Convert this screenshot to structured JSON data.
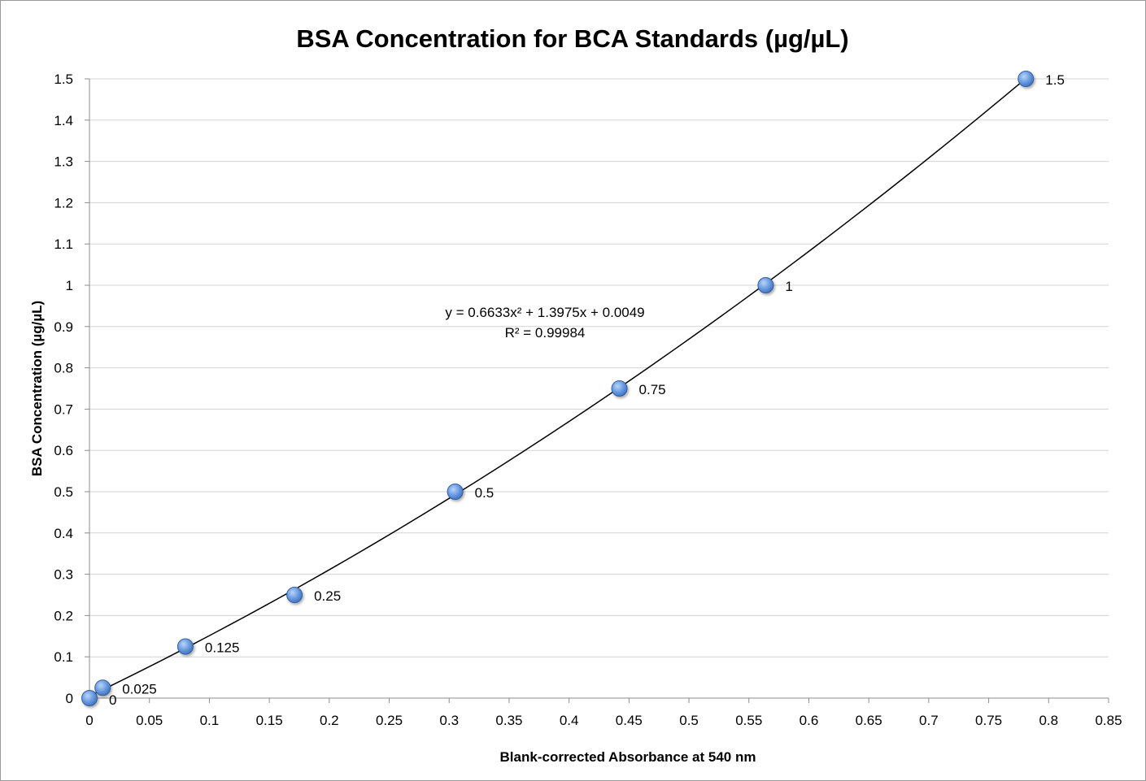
{
  "chart_data": {
    "type": "scatter",
    "title": "BSA Concentration for BCA Standards (µg/µL)",
    "xlabel": "Blank-corrected Absorbance at 540 nm",
    "ylabel": "BSA Concentration (µg/µL)",
    "xlim": [
      0,
      0.85
    ],
    "ylim": [
      0,
      1.5
    ],
    "x_ticks": [
      0,
      0.05,
      0.1,
      0.15,
      0.2,
      0.25,
      0.3,
      0.35,
      0.4,
      0.45,
      0.5,
      0.55,
      0.6,
      0.65,
      0.7,
      0.75,
      0.8,
      0.85
    ],
    "x_tick_labels": [
      "0",
      "0.05",
      "0.1",
      "0.15",
      "0.2",
      "0.25",
      "0.3",
      "0.35",
      "0.4",
      "0.45",
      "0.5",
      "0.55",
      "0.6",
      "0.65",
      "0.7",
      "0.75",
      "0.8",
      "0.85"
    ],
    "y_ticks": [
      0,
      0.1,
      0.2,
      0.3,
      0.4,
      0.5,
      0.6,
      0.7,
      0.8,
      0.9,
      1,
      1.1,
      1.2,
      1.3,
      1.4,
      1.5
    ],
    "y_tick_labels": [
      "0",
      "0.1",
      "0.2",
      "0.3",
      "0.4",
      "0.5",
      "0.6",
      "0.7",
      "0.8",
      "0.9",
      "1",
      "1.1",
      "1.2",
      "1.3",
      "1.4",
      "1.5"
    ],
    "grid": {
      "horizontal": true,
      "vertical": false
    },
    "legend": "none",
    "series": [
      {
        "points": [
          {
            "x": 0.0,
            "y": 0,
            "label": "0"
          },
          {
            "x": 0.011,
            "y": 0.025,
            "label": "0.025"
          },
          {
            "x": 0.08,
            "y": 0.125,
            "label": "0.125"
          },
          {
            "x": 0.171,
            "y": 0.25,
            "label": "0.25"
          },
          {
            "x": 0.305,
            "y": 0.5,
            "label": "0.5"
          },
          {
            "x": 0.442,
            "y": 0.75,
            "label": "0.75"
          },
          {
            "x": 0.564,
            "y": 1,
            "label": "1"
          },
          {
            "x": 0.781,
            "y": 1.5,
            "label": "1.5"
          }
        ],
        "color": "#5b8fd9"
      }
    ],
    "trendline": {
      "type": "polynomial",
      "order": 2,
      "coefficients": {
        "a": 0.6633,
        "b": 1.3975,
        "c": 0.0049
      },
      "x_range": [
        0,
        0.781
      ],
      "equation_text": "y = 0.6633x² + 1.3975x + 0.0049",
      "r2_text": "R² = 0.99984",
      "color": "#000000"
    }
  }
}
